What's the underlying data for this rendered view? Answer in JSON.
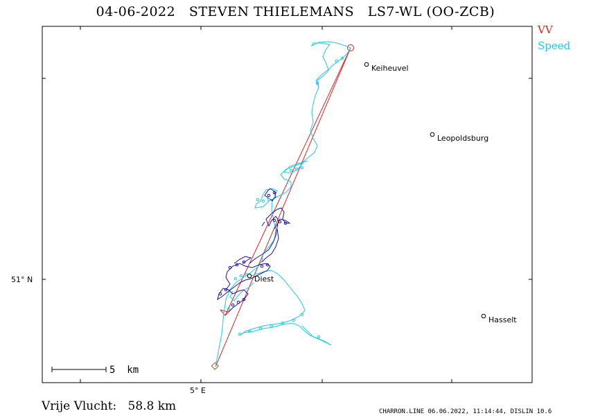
{
  "header": {
    "date": "04-06-2022",
    "pilot": "STEVEN THIELEMANS",
    "glider": "LS7-WL (OO-ZCB)"
  },
  "legend": {
    "vv": "VV",
    "speed": "Speed"
  },
  "axes": {
    "lat_label": "51° N",
    "lon_label": "5° E"
  },
  "scale_bar": {
    "label": "5  km"
  },
  "towns": [
    {
      "name": "Keiheuvel"
    },
    {
      "name": "Leopoldsburg"
    },
    {
      "name": "Diest"
    },
    {
      "name": "Hasselt"
    }
  ],
  "footer": {
    "distance_label": "Vrije Vlucht:",
    "distance_value": "58.8 km",
    "credits": "CHARRON.LINE 06.06.2022, 11:14:44, DISLIN 10.6"
  },
  "colors": {
    "task_line": "#e02020",
    "track_fast": "#20c8e8",
    "track_slow": "#2010a0",
    "frame": "#000000"
  }
}
